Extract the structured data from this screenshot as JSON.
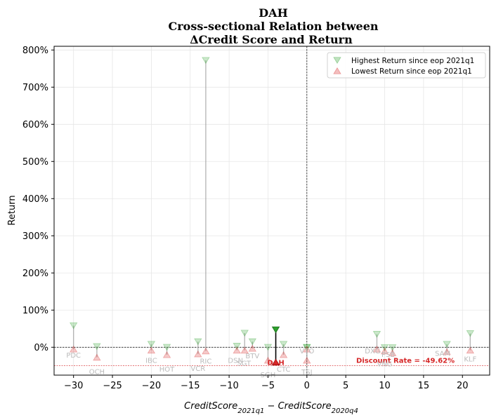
{
  "chart_data": {
    "type": "scatter",
    "title_lines": [
      "DAH",
      "Cross-sectional Relation between",
      "ΔCredit Score and Return"
    ],
    "xlabel": "CreditScore_{2021q1} − CreditScore_{2020q4}",
    "ylabel": "Return",
    "xlim": [
      -32.5,
      23.5
    ],
    "ylim": [
      -0.75,
      8.1
    ],
    "xticks": [
      -30,
      -25,
      -20,
      -15,
      -10,
      -5,
      0,
      5,
      10,
      15,
      20
    ],
    "xtick_labels": [
      "−30",
      "−25",
      "−20",
      "−15",
      "−10",
      "−5",
      "0",
      "5",
      "10",
      "15",
      "20"
    ],
    "yticks": [
      0,
      1,
      2,
      3,
      4,
      5,
      6,
      7,
      8
    ],
    "ytick_labels": [
      "0%",
      "100%",
      "200%",
      "300%",
      "400%",
      "500%",
      "600%",
      "700%",
      "800%"
    ],
    "grid": true,
    "legend": {
      "position": "top-right",
      "entries": [
        {
          "label": "Highest Return since eop 2021q1",
          "marker": "triangle-down",
          "color": "#2ca02c"
        },
        {
          "label": "Lowest Return since eop 2021q1",
          "marker": "triangle-up",
          "color": "#d62728"
        }
      ]
    },
    "discount_rate": {
      "value": -0.4962,
      "label": "Discount Rate = -49.62%"
    },
    "focus_ticker": "DAH",
    "points": [
      {
        "ticker": "PDC",
        "x": -30,
        "high": 0.58,
        "low": -0.05
      },
      {
        "ticker": "OCH",
        "x": -27,
        "high": 0.02,
        "low": -0.27
      },
      {
        "ticker": "IBC",
        "x": -20,
        "high": 0.08,
        "low": -0.08
      },
      {
        "ticker": "HOT",
        "x": -18,
        "high": 0.0,
        "low": -0.2
      },
      {
        "ticker": "VCR",
        "x": -14,
        "high": 0.15,
        "low": -0.18
      },
      {
        "ticker": "RIC",
        "x": -13,
        "high": 7.72,
        "low": -0.1
      },
      {
        "ticker": "DSN",
        "x": -9,
        "high": 0.03,
        "low": -0.08
      },
      {
        "ticker": "SGT",
        "x": -8,
        "high": 0.38,
        "low": -0.08
      },
      {
        "ticker": "BTV",
        "x": -7,
        "high": 0.15,
        "low": -0.03
      },
      {
        "ticker": "SGH",
        "x": -5,
        "high": 0.0,
        "low": -0.35
      },
      {
        "ticker": "DAH",
        "x": -4,
        "high": 0.47,
        "low": -0.4
      },
      {
        "ticker": "CTC",
        "x": -3,
        "high": 0.08,
        "low": -0.2
      },
      {
        "ticker": "TSJ",
        "x": 0,
        "high": -0.01,
        "low": -0.35
      },
      {
        "ticker": "VTO",
        "x": 0,
        "high": 0.0,
        "low": -0.05
      },
      {
        "ticker": "DXG",
        "x": 9,
        "high": 0.35,
        "low": -0.05
      },
      {
        "ticker": "VNG",
        "x": 10,
        "high": -0.01,
        "low": -0.1
      },
      {
        "ticker": "PSB",
        "x": 11,
        "high": -0.01,
        "low": -0.15
      },
      {
        "ticker": "SAM",
        "x": 18,
        "high": 0.08,
        "low": -0.12
      },
      {
        "ticker": "KLF",
        "x": 21,
        "high": 0.37,
        "low": -0.08
      }
    ]
  }
}
